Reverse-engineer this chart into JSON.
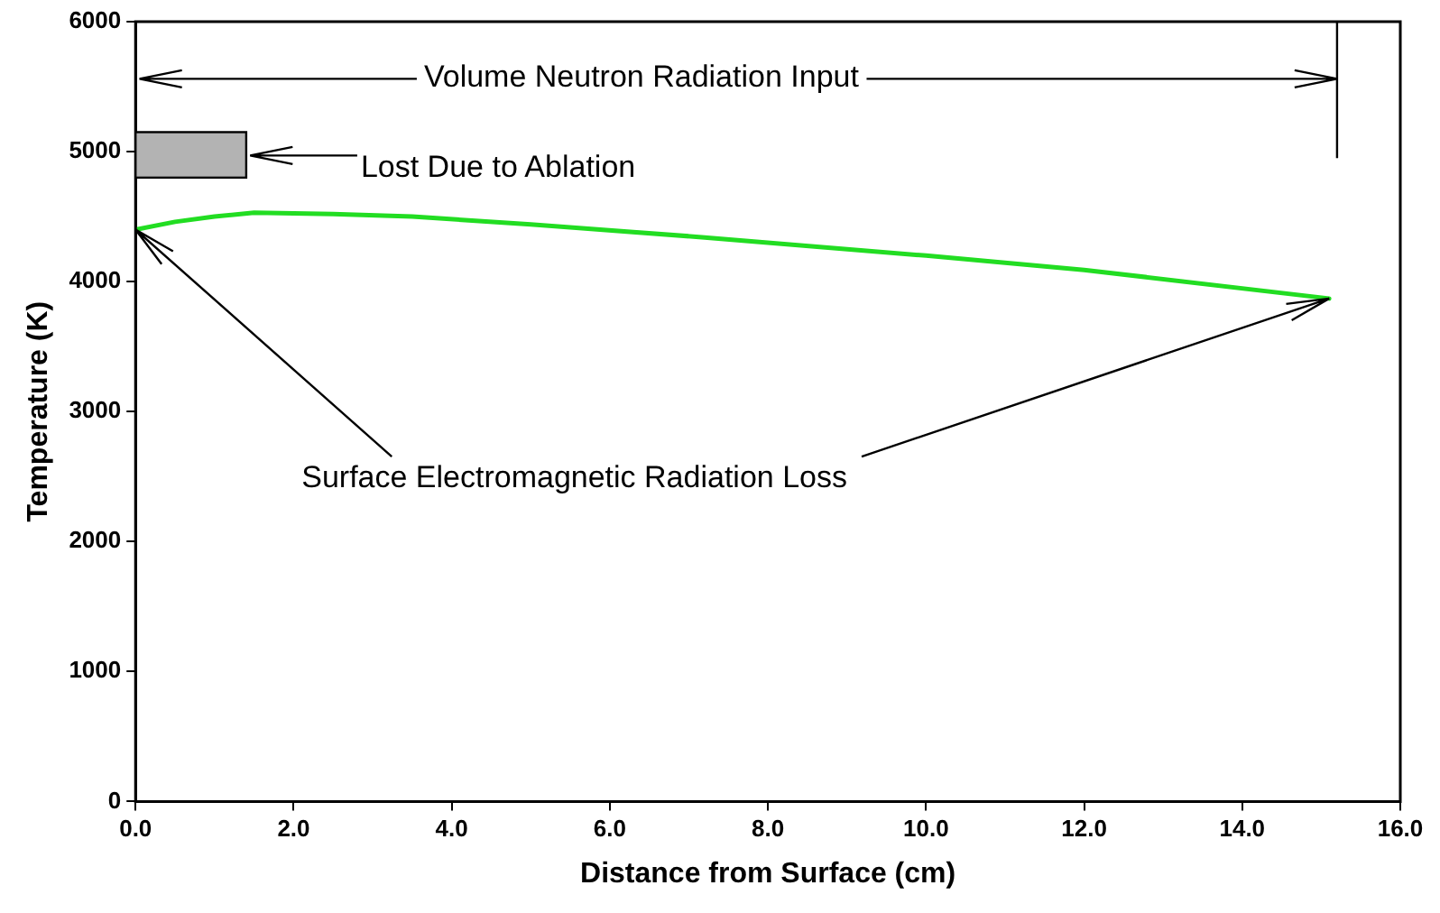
{
  "chart_data": {
    "type": "line",
    "xlabel": "Distance from Surface (cm)",
    "ylabel": "Temperature (K)",
    "x": [
      0,
      0.5,
      1.0,
      1.5,
      2.5,
      3.5,
      5.0,
      7.2,
      10.0,
      12.0,
      15.1
    ],
    "series": [
      {
        "color": "#22dd22",
        "values": [
          4400,
          4460,
          4500,
          4530,
          4520,
          4500,
          4440,
          4340,
          4200,
          4090,
          3870
        ]
      }
    ],
    "xlim": [
      0,
      16
    ],
    "xticks": [
      {
        "value": 0,
        "label": "0.0"
      },
      {
        "value": 2,
        "label": "2.0"
      },
      {
        "value": 4,
        "label": "4.0"
      },
      {
        "value": 6,
        "label": "6.0"
      },
      {
        "value": 8,
        "label": "8.0"
      },
      {
        "value": 10,
        "label": "10.0"
      },
      {
        "value": 12,
        "label": "12.0"
      },
      {
        "value": 14,
        "label": "14.0"
      },
      {
        "value": 16,
        "label": "16.0"
      }
    ],
    "ylim": [
      0,
      6000
    ],
    "yticks": [
      0,
      1000,
      2000,
      3000,
      4000,
      5000,
      6000
    ],
    "annotations": [
      "Volume Neutron Radiation Input",
      "Lost Due to Ablation",
      {
        "text": "Surface Electromagnetic Radiation Loss",
        "x": 0,
        "y": 4400
      }
    ],
    "grid": false,
    "legend": false,
    "marker": "none",
    "line_style": "solid"
  }
}
